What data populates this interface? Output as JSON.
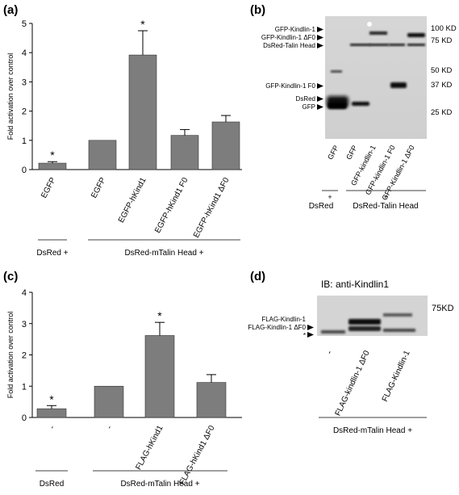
{
  "panels": {
    "a": "(a)",
    "b": "(b)",
    "c": "(c)",
    "d": "(d)"
  },
  "chart_data": [
    {
      "type": "bar",
      "panel": "(a)",
      "ylabel": "Fold activation over control",
      "ylim": [
        0,
        5
      ],
      "yticks": [
        "0",
        "1",
        "2",
        "3",
        "4",
        "5"
      ],
      "categories": [
        "EGFP",
        "EGFP",
        "EGFP-hKind1",
        "EGFP-hKind1 F0",
        "EGFP-hKind1 ΔF0"
      ],
      "values": [
        0.22,
        1.0,
        3.92,
        1.17,
        1.63
      ],
      "errors": [
        0.05,
        0.0,
        0.83,
        0.2,
        0.22
      ],
      "significance": [
        "*",
        "",
        "*",
        "",
        ""
      ],
      "groups": [
        {
          "label": "DsRed +",
          "from": 0,
          "to": 0
        },
        {
          "label": "DsRed-mTalin Head +",
          "from": 1,
          "to": 4
        }
      ],
      "bar_color": "#7d7d7d"
    },
    {
      "type": "bar",
      "panel": "(c)",
      "ylabel": "Fold activation over control",
      "ylim": [
        0,
        4
      ],
      "yticks": [
        "0",
        "1",
        "2",
        "3",
        "4"
      ],
      "categories": [
        "-",
        "-",
        "FLAG-hKind1",
        "FLAG-hKind1 ΔF0"
      ],
      "values": [
        0.28,
        1.0,
        2.62,
        1.12
      ],
      "errors": [
        0.1,
        0.0,
        0.42,
        0.25
      ],
      "significance": [
        "*",
        "",
        "*",
        ""
      ],
      "groups": [
        {
          "label": "DsRed",
          "from": 0,
          "to": 0
        },
        {
          "label": "DsRed-mTalin Head +",
          "from": 1,
          "to": 3
        }
      ],
      "bar_color": "#7d7d7d"
    }
  ],
  "blot_b": {
    "markers": [
      "100 KD",
      "75 KD",
      "50 KD",
      "37 KD",
      "25 KD"
    ],
    "band_labels": [
      "GFP-Kindlin-1",
      "GFP-Kindlin-1 ΔF0",
      "DsRed-Talin Head",
      "GFP-Kindlin-1 F0",
      "DsRed",
      "GFP"
    ],
    "lanes": [
      "GFP",
      "GFP",
      "GFP-kindlin-1",
      "GFP-kindlin-1 F0",
      "GFP-Kindlin-1 ΔF0"
    ],
    "groups": [
      {
        "plus": "+",
        "label": "DsRed"
      },
      {
        "plus": "+",
        "label": "DsRed-Talin Head"
      }
    ]
  },
  "blot_d": {
    "title": "IB: anti-Kindlin1",
    "marker": "75KD",
    "band_labels": [
      "FLAG-Kindlin-1",
      "FLAG-Kindlin-1 ΔF0",
      "*"
    ],
    "lanes": [
      "-",
      "FLAG-kindlin-1 ΔF0",
      "FLAG-Kindlin-1"
    ],
    "group": "DsRed-mTalin Head +"
  }
}
